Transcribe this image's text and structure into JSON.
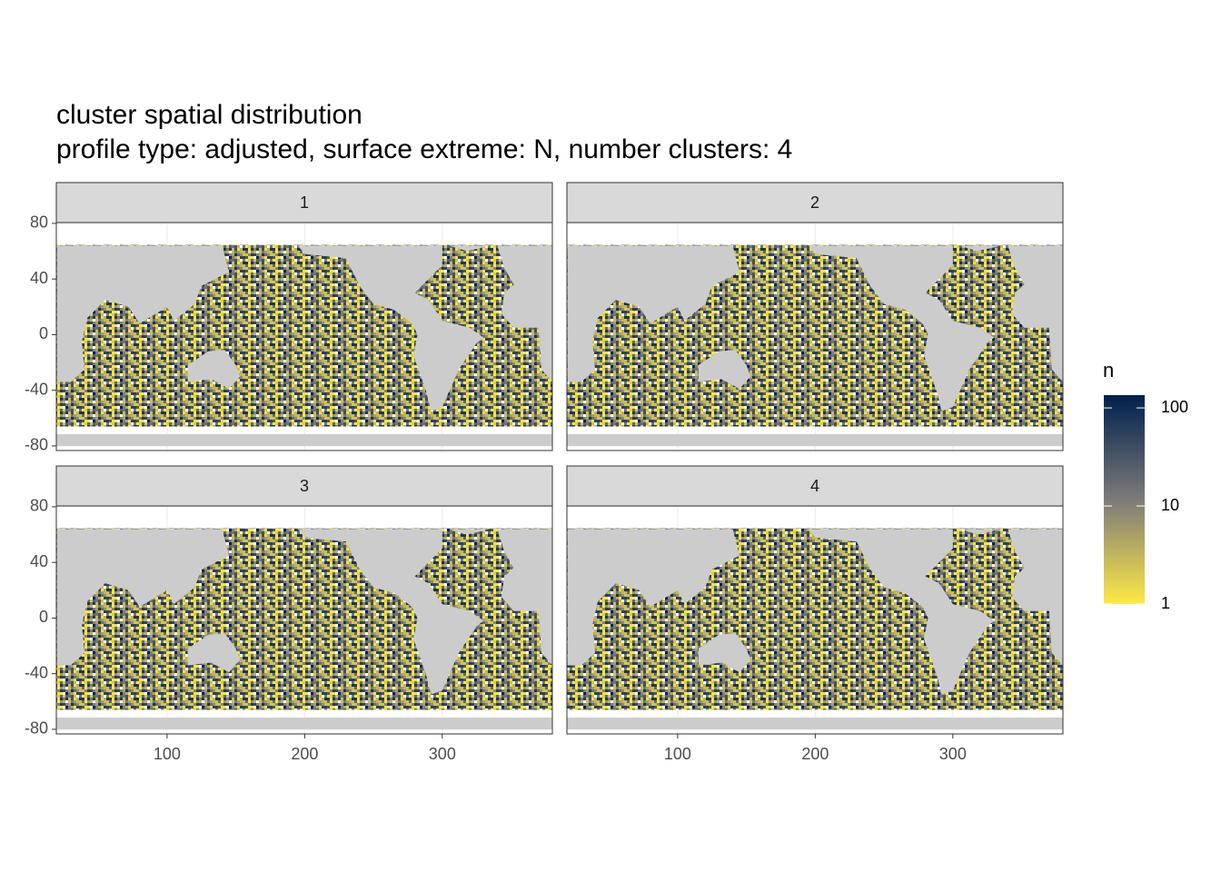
{
  "chart_data": {
    "type": "facet-map",
    "title": "cluster spatial distribution",
    "subtitle": "profile type: adjusted, surface extreme: N, number clusters: 4",
    "panels": [
      "1",
      "2",
      "3",
      "4"
    ],
    "xlim": [
      19.5,
      380
    ],
    "xticks": [
      100,
      200,
      300
    ],
    "ylim": [
      -83.3,
      80.6
    ],
    "yticks": [
      -80,
      -40,
      0,
      40,
      80
    ],
    "grid": true,
    "legend": {
      "title": "n",
      "scale": "log",
      "limits": [
        1,
        135
      ],
      "ticks": [
        1,
        10,
        100
      ],
      "colors": [
        "#fde945",
        "#7c7b78",
        "#00204d"
      ]
    }
  }
}
